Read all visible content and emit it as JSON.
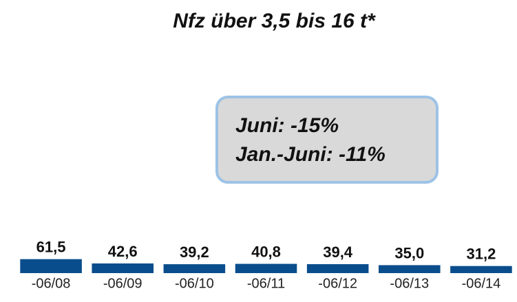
{
  "chart_data": {
    "type": "bar",
    "title": "Nfz über 3,5 bis 16 t*",
    "annotations": [
      "Juni: -15%",
      "Jan.-Juni: -11%"
    ],
    "categories": [
      "-06/08",
      "-06/09",
      "-06/10",
      "-06/11",
      "-06/12",
      "-06/13",
      "-06/14"
    ],
    "values": [
      61.5,
      42.6,
      39.2,
      40.8,
      39.4,
      35.0,
      31.2
    ],
    "value_labels": [
      "61,5",
      "42,6",
      "39,2",
      "40,8",
      "39,4",
      "35,0",
      "31,2"
    ],
    "color": "#0a4d8c",
    "ylim": [
      0,
      1000
    ]
  }
}
